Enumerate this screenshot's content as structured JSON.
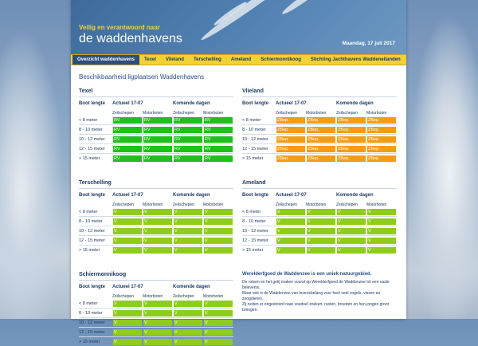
{
  "header": {
    "tagline": "Veilig en verantwoord naar",
    "title": "de waddenhavens",
    "date": "Maandag, 17 juli 2017"
  },
  "nav": [
    "Overzicht waddenhavens",
    "Texel",
    "Vlieland",
    "Terschelling",
    "Ameland",
    "Schiermonnikoog",
    "Stichting Jachthavens Waddeneilanden"
  ],
  "heading": "Beschikbaarheid ligplaatsen Waddenhavens",
  "columns": {
    "boot_lengte": "Boot lengte",
    "actueel": "Actueel 17-07",
    "komende": "Komende dagen",
    "zeil": "Zeilschepen",
    "motor": "Motorboten"
  },
  "rows": [
    "< 8 meter",
    "8 - 10 meter",
    "10 - 12 meter",
    "12 - 15 meter",
    "> 15 meter"
  ],
  "panels": [
    {
      "name": "Texel",
      "status": "RV"
    },
    {
      "name": "Vlieland",
      "status": "ZBep"
    },
    {
      "name": "Terschelling",
      "status": "V"
    },
    {
      "name": "Ameland",
      "status": "V"
    },
    {
      "name": "Schiermonnikoog",
      "status": "V"
    }
  ],
  "status_labels": {
    "RV": "RV",
    "ZBep": "ZBep.",
    "V": "V"
  },
  "status_colors": {
    "RV": "#1fc01a",
    "ZBep": "#f59c14",
    "V": "#8fcc1c"
  },
  "info": {
    "title": "Werelderfgoed de Waddenzee is een uniek natuurgebied.",
    "line1": "De rotsen en het getij maken vooral op Werelderfgoed de Waddenzee tot een vaste belevenis.",
    "line2": "Maar ook is de Waddenzee van levensbelang voor heel veel vogels, vissen en zoogdieren.",
    "line3": "Zij rusten er ongestoord naar voedsel zoeken, rusten, broeden en hun jongen groot brengen."
  }
}
